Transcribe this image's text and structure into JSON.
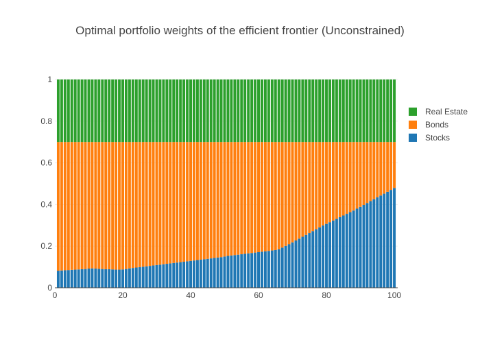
{
  "chart_data": {
    "type": "bar",
    "stacked": true,
    "title": "Optimal portfolio weights of the efficient frontier (Unconstrained)",
    "xlabel": "",
    "ylabel": "",
    "xlim": [
      0,
      101
    ],
    "ylim": [
      0,
      1
    ],
    "x_ticks": [
      0,
      20,
      40,
      60,
      80,
      100
    ],
    "y_ticks": [
      0,
      0.2,
      0.4,
      0.6,
      0.8,
      1
    ],
    "y_tick_labels": [
      "0",
      "0.2",
      "0.4",
      "0.6",
      "0.8",
      "1"
    ],
    "grid": true,
    "legend_position": "right",
    "x": [
      1,
      2,
      3,
      4,
      5,
      6,
      7,
      8,
      9,
      10,
      11,
      12,
      13,
      14,
      15,
      16,
      17,
      18,
      19,
      20,
      21,
      22,
      23,
      24,
      25,
      26,
      27,
      28,
      29,
      30,
      31,
      32,
      33,
      34,
      35,
      36,
      37,
      38,
      39,
      40,
      41,
      42,
      43,
      44,
      45,
      46,
      47,
      48,
      49,
      50,
      51,
      52,
      53,
      54,
      55,
      56,
      57,
      58,
      59,
      60,
      61,
      62,
      63,
      64,
      65,
      66,
      67,
      68,
      69,
      70,
      71,
      72,
      73,
      74,
      75,
      76,
      77,
      78,
      79,
      80,
      81,
      82,
      83,
      84,
      85,
      86,
      87,
      88,
      89,
      90,
      91,
      92,
      93,
      94,
      95,
      96,
      97,
      98,
      99,
      100
    ],
    "series": [
      {
        "name": "Stocks",
        "color": "#1f77b4",
        "values": [
          0.082,
          0.083,
          0.084,
          0.085,
          0.086,
          0.087,
          0.088,
          0.089,
          0.09,
          0.092,
          0.093,
          0.092,
          0.091,
          0.09,
          0.089,
          0.089,
          0.088,
          0.087,
          0.087,
          0.088,
          0.09,
          0.093,
          0.095,
          0.097,
          0.099,
          0.101,
          0.103,
          0.105,
          0.107,
          0.109,
          0.111,
          0.113,
          0.115,
          0.117,
          0.119,
          0.121,
          0.123,
          0.125,
          0.127,
          0.129,
          0.131,
          0.133,
          0.135,
          0.137,
          0.139,
          0.141,
          0.143,
          0.145,
          0.147,
          0.15,
          0.153,
          0.155,
          0.157,
          0.159,
          0.161,
          0.163,
          0.165,
          0.167,
          0.169,
          0.171,
          0.173,
          0.175,
          0.177,
          0.179,
          0.181,
          0.185,
          0.193,
          0.201,
          0.209,
          0.218,
          0.227,
          0.236,
          0.245,
          0.254,
          0.263,
          0.272,
          0.281,
          0.29,
          0.299,
          0.307,
          0.315,
          0.323,
          0.331,
          0.339,
          0.347,
          0.355,
          0.363,
          0.371,
          0.38,
          0.389,
          0.398,
          0.407,
          0.416,
          0.425,
          0.434,
          0.443,
          0.452,
          0.461,
          0.47,
          0.479
        ]
      },
      {
        "name": "Bonds",
        "color": "#ff7f0e",
        "values": [
          0.618,
          0.617,
          0.616,
          0.615,
          0.614,
          0.613,
          0.612,
          0.611,
          0.61,
          0.608,
          0.607,
          0.608,
          0.609,
          0.61,
          0.611,
          0.611,
          0.612,
          0.613,
          0.613,
          0.612,
          0.61,
          0.607,
          0.605,
          0.603,
          0.601,
          0.599,
          0.597,
          0.595,
          0.593,
          0.591,
          0.589,
          0.587,
          0.585,
          0.583,
          0.581,
          0.579,
          0.577,
          0.575,
          0.573,
          0.571,
          0.569,
          0.567,
          0.565,
          0.563,
          0.561,
          0.559,
          0.557,
          0.555,
          0.553,
          0.55,
          0.547,
          0.545,
          0.543,
          0.541,
          0.539,
          0.537,
          0.535,
          0.533,
          0.531,
          0.529,
          0.527,
          0.525,
          0.523,
          0.521,
          0.519,
          0.515,
          0.507,
          0.499,
          0.491,
          0.482,
          0.473,
          0.464,
          0.455,
          0.446,
          0.437,
          0.428,
          0.419,
          0.41,
          0.401,
          0.393,
          0.385,
          0.377,
          0.369,
          0.361,
          0.353,
          0.345,
          0.337,
          0.329,
          0.32,
          0.311,
          0.302,
          0.293,
          0.284,
          0.275,
          0.266,
          0.257,
          0.248,
          0.239,
          0.23,
          0.221
        ]
      },
      {
        "name": "Real Estate",
        "color": "#2ca02c",
        "values": [
          0.3,
          0.3,
          0.3,
          0.3,
          0.3,
          0.3,
          0.3,
          0.3,
          0.3,
          0.3,
          0.3,
          0.3,
          0.3,
          0.3,
          0.3,
          0.3,
          0.3,
          0.3,
          0.3,
          0.3,
          0.3,
          0.3,
          0.3,
          0.3,
          0.3,
          0.3,
          0.3,
          0.3,
          0.3,
          0.3,
          0.3,
          0.3,
          0.3,
          0.3,
          0.3,
          0.3,
          0.3,
          0.3,
          0.3,
          0.3,
          0.3,
          0.3,
          0.3,
          0.3,
          0.3,
          0.3,
          0.3,
          0.3,
          0.3,
          0.3,
          0.3,
          0.3,
          0.3,
          0.3,
          0.3,
          0.3,
          0.3,
          0.3,
          0.3,
          0.3,
          0.3,
          0.3,
          0.3,
          0.3,
          0.3,
          0.3,
          0.3,
          0.3,
          0.3,
          0.3,
          0.3,
          0.3,
          0.3,
          0.3,
          0.3,
          0.3,
          0.3,
          0.3,
          0.3,
          0.3,
          0.3,
          0.3,
          0.3,
          0.3,
          0.3,
          0.3,
          0.3,
          0.3,
          0.3,
          0.3,
          0.3,
          0.3,
          0.3,
          0.3,
          0.3,
          0.3,
          0.3,
          0.3,
          0.3,
          0.3
        ]
      }
    ],
    "legend_order": [
      "Real Estate",
      "Bonds",
      "Stocks"
    ]
  }
}
